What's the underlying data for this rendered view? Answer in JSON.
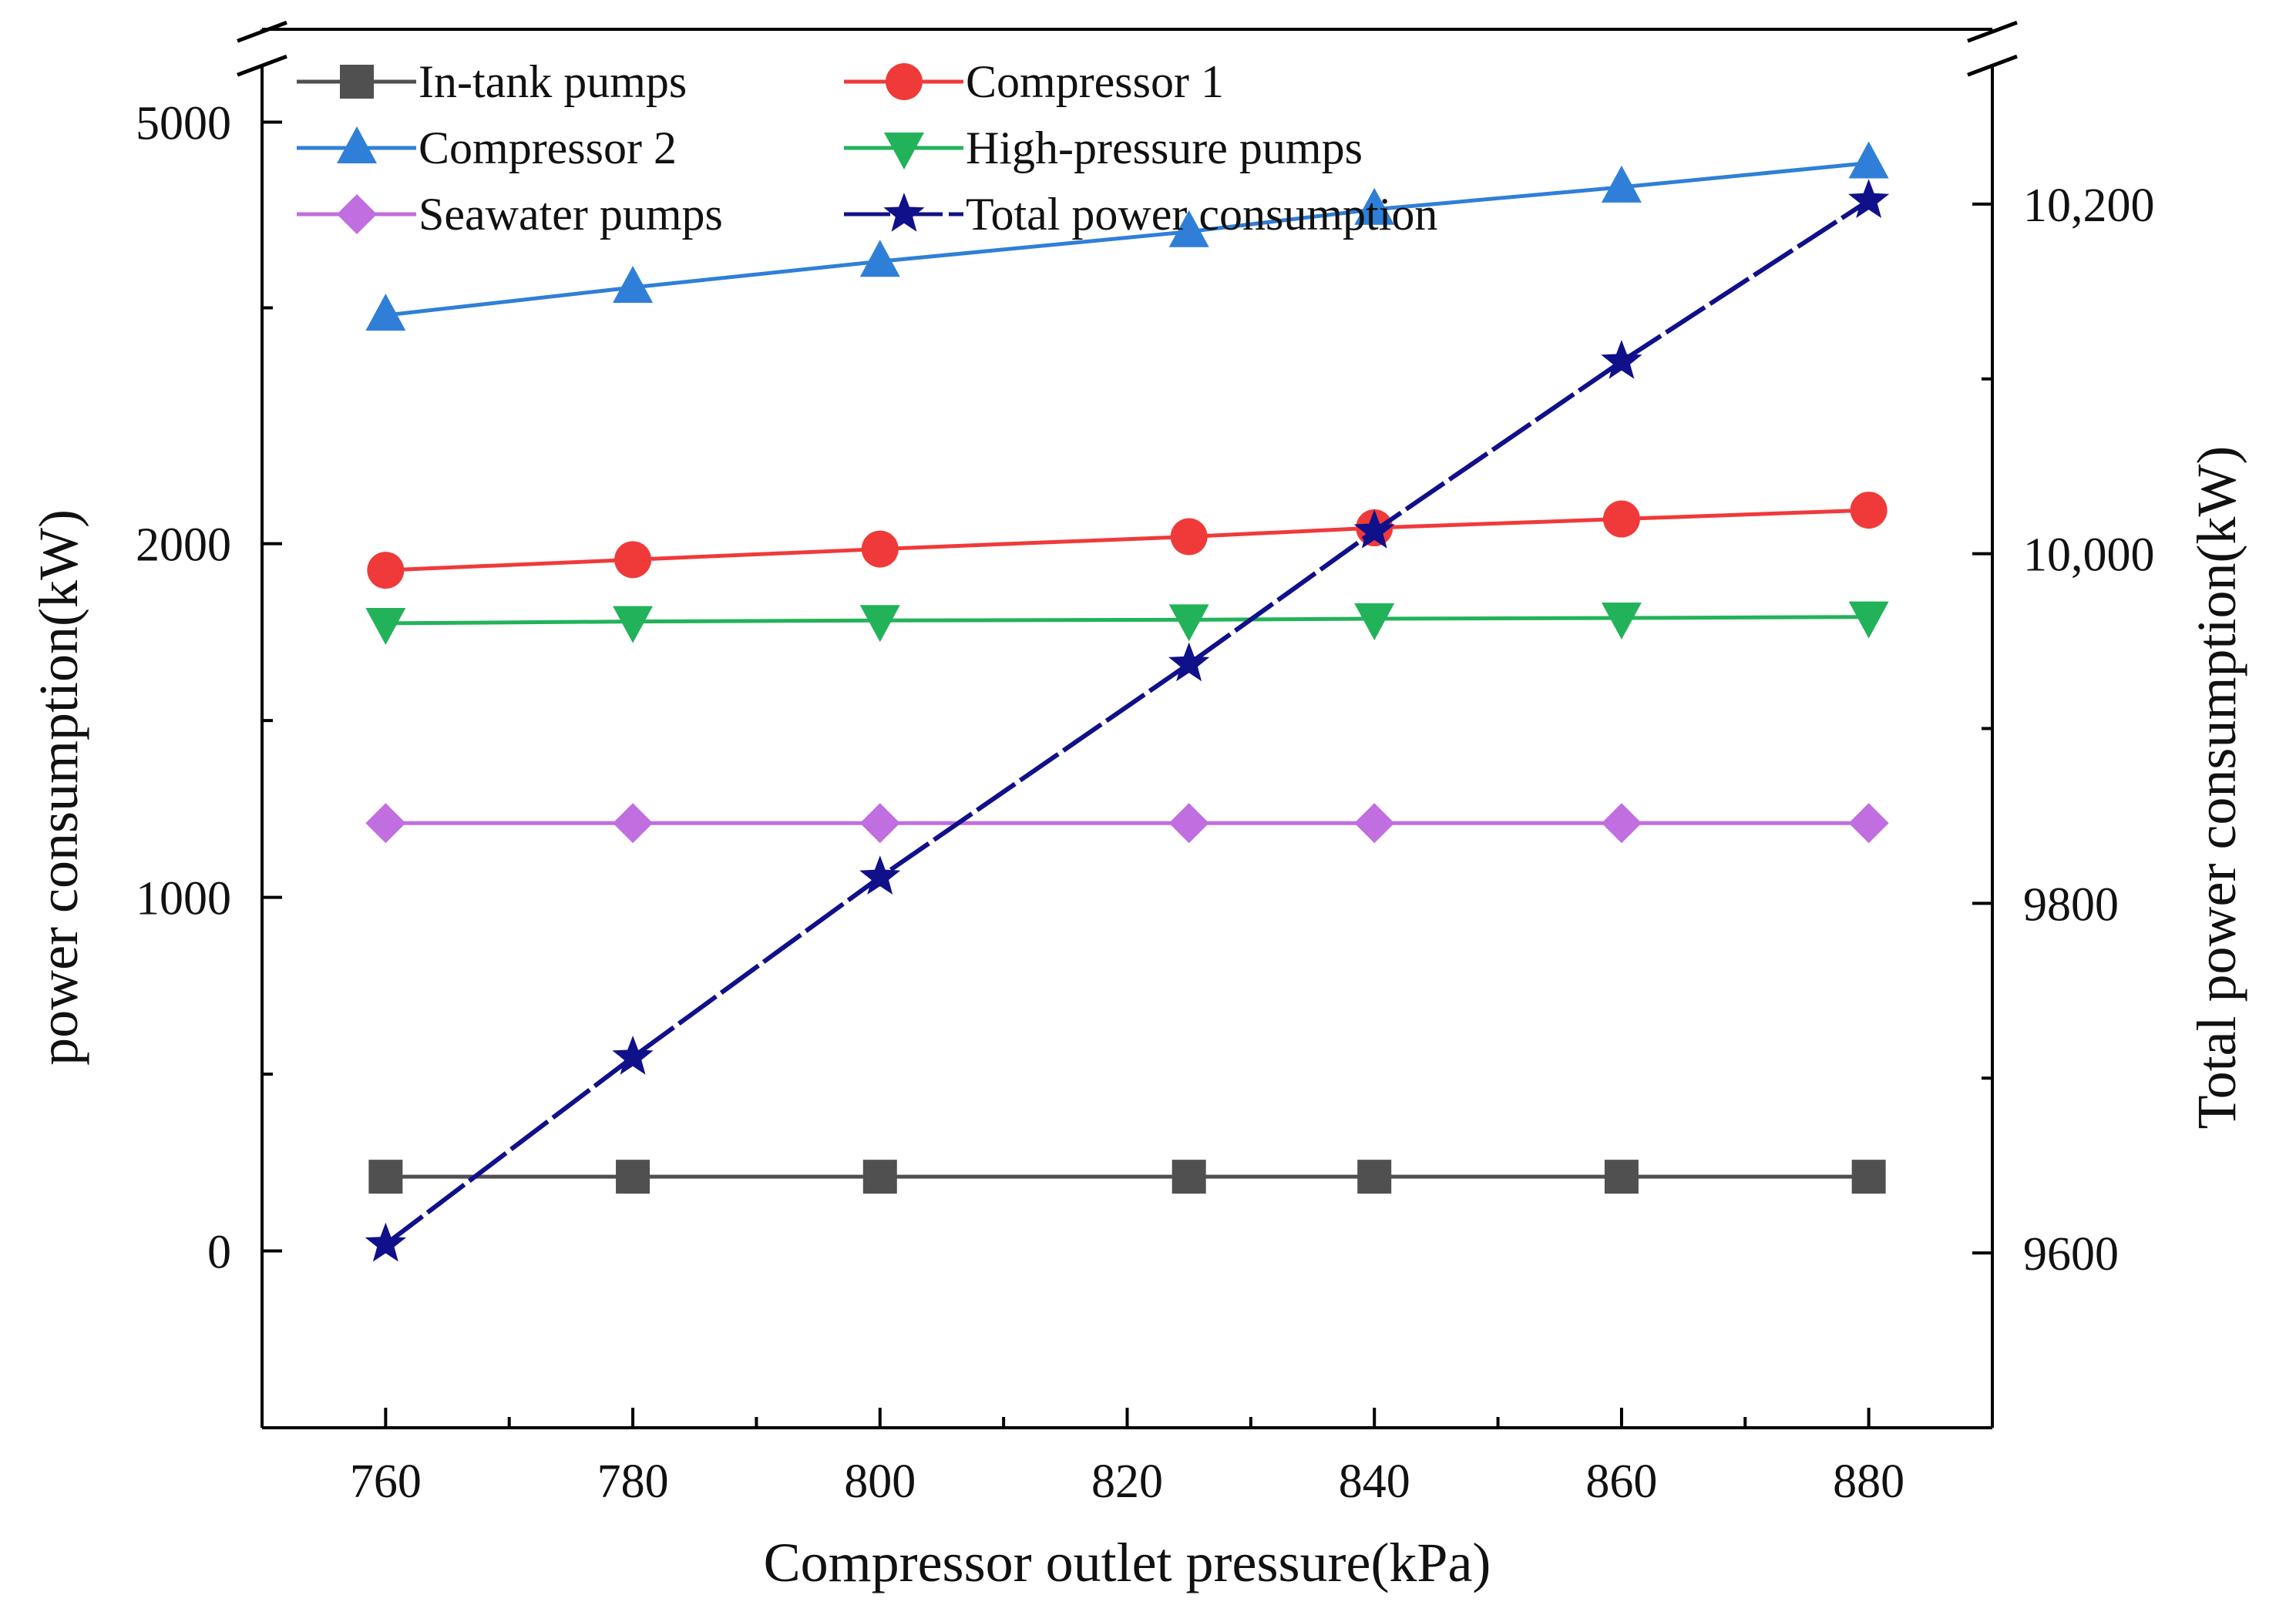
{
  "chart_data": {
    "type": "line",
    "xlabel": "Compressor outlet pressure(kPa)",
    "ylabel_left": "power consumption(kW)",
    "ylabel_right": "Total power consumption(kW)",
    "x_ticks": [
      "760",
      "780",
      "800",
      "820",
      "840",
      "860",
      "880"
    ],
    "xlim": [
      750,
      890
    ],
    "left_axis": {
      "lower_segment": {
        "range": [
          -500,
          2300
        ],
        "ticks": [
          0,
          1000,
          2000
        ],
        "tick_labels": [
          "0",
          "1000",
          "2000"
        ]
      },
      "upper_segment": {
        "range": [
          4250,
          5250
        ],
        "ticks": [
          5000
        ],
        "tick_labels": [
          "5000"
        ]
      },
      "break": "between 2300 and 4250"
    },
    "right_axis": {
      "range": [
        9500,
        10300
      ],
      "ticks": [
        9600,
        9800,
        10000,
        10200
      ],
      "tick_labels": [
        "9600",
        "9800",
        "10,000",
        "10,200"
      ],
      "break_near": 10075
    },
    "x": [
      760,
      780,
      800,
      825,
      840,
      860,
      880
    ],
    "series": [
      {
        "name": "In-tank pumps",
        "axis": "left",
        "marker": "square",
        "color": "#505050",
        "values": [
          210,
          210,
          210,
          210,
          210,
          210,
          210
        ]
      },
      {
        "name": "Compressor 1",
        "axis": "left",
        "marker": "circle",
        "color": "#f03a3a",
        "values": [
          1925,
          1955,
          1985,
          2020,
          2045,
          2070,
          2095
        ]
      },
      {
        "name": "Compressor 2",
        "axis": "left",
        "marker": "triangle-up",
        "color": "#2f7fd8",
        "values": [
          4480,
          4555,
          4625,
          4705,
          4765,
          4825,
          4890
        ]
      },
      {
        "name": "High-pressure pumps",
        "axis": "left",
        "marker": "triangle-down",
        "color": "#22b35a",
        "values": [
          1775,
          1780,
          1783,
          1785,
          1788,
          1790,
          1793
        ]
      },
      {
        "name": "Seawater pumps",
        "axis": "left",
        "marker": "diamond",
        "color": "#c06ee0",
        "values": [
          1210,
          1210,
          1210,
          1210,
          1210,
          1210,
          1210
        ]
      },
      {
        "name": "Total power consumption",
        "axis": "right",
        "marker": "star",
        "color": "#10108a",
        "values": [
          9605,
          9712,
          9815,
          9937,
          10013,
          10110,
          10202
        ]
      }
    ],
    "legend": "top-left, two columns"
  }
}
